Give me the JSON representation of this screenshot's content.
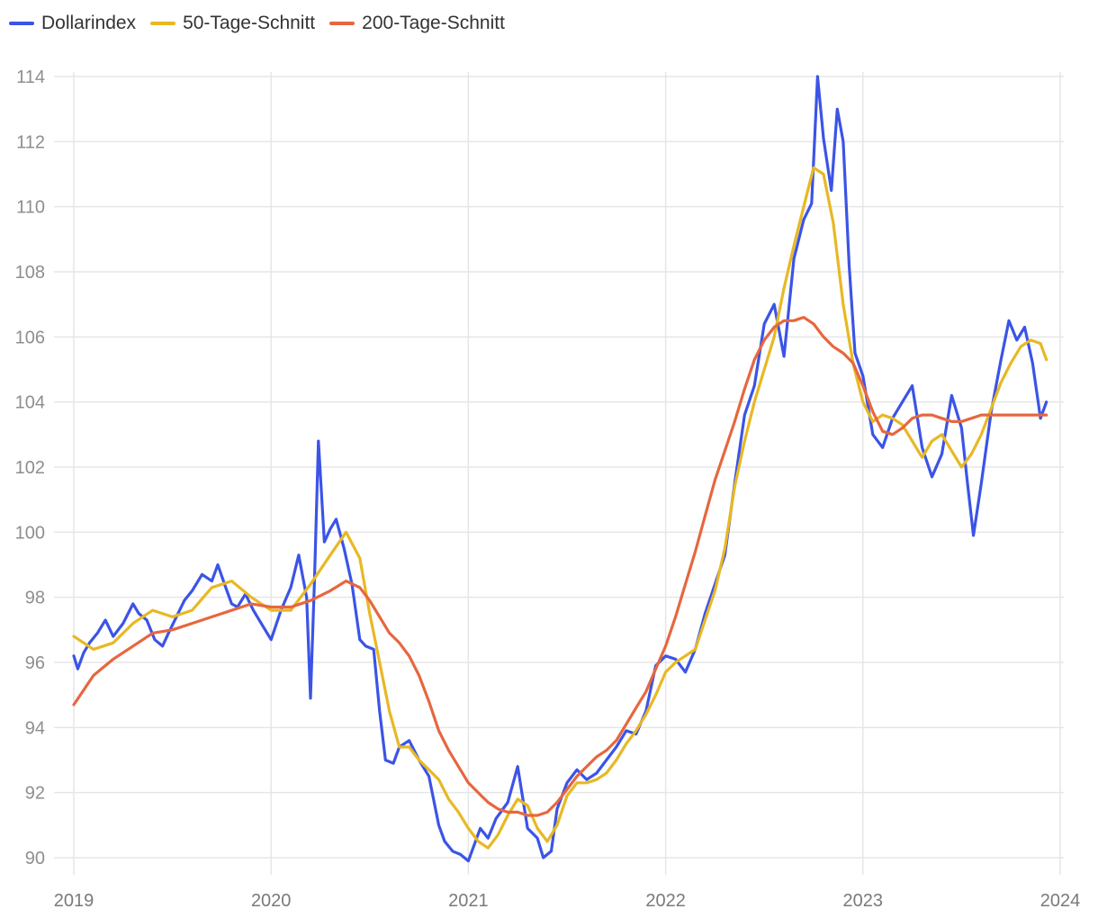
{
  "legend": [
    {
      "label": "Dollarindex",
      "color": "#3b54e6"
    },
    {
      "label": "50-Tage-Schnitt",
      "color": "#e8b824"
    },
    {
      "label": "200-Tage-Schnitt",
      "color": "#e6673f"
    }
  ],
  "chart_data": {
    "type": "line",
    "title": "",
    "xlabel": "",
    "ylabel": "",
    "xlim": [
      2019.0,
      2023.96
    ],
    "ylim": [
      89.8,
      114.2
    ],
    "x_ticks": [
      2019,
      2020,
      2021,
      2022,
      2023,
      2024
    ],
    "x_tick_labels": [
      "2019",
      "2020",
      "2021",
      "2022",
      "2023",
      "2024"
    ],
    "y_ticks": [
      90,
      92,
      94,
      96,
      98,
      100,
      102,
      104,
      106,
      108,
      110,
      112,
      114
    ],
    "y_tick_labels": [
      "90",
      "92",
      "94",
      "96",
      "98",
      "100",
      "102",
      "104",
      "106",
      "108",
      "110",
      "112",
      "114"
    ],
    "grid": true,
    "legend_position": "top-left",
    "series": [
      {
        "name": "Dollarindex",
        "color": "#3b54e6",
        "x": [
          2019.0,
          2019.02,
          2019.05,
          2019.08,
          2019.12,
          2019.16,
          2019.2,
          2019.25,
          2019.3,
          2019.33,
          2019.37,
          2019.41,
          2019.45,
          2019.48,
          2019.52,
          2019.56,
          2019.6,
          2019.65,
          2019.7,
          2019.73,
          2019.77,
          2019.8,
          2019.83,
          2019.87,
          2019.91,
          2019.95,
          2020.0,
          2020.05,
          2020.1,
          2020.14,
          2020.18,
          2020.2,
          2020.22,
          2020.24,
          2020.27,
          2020.3,
          2020.33,
          2020.37,
          2020.41,
          2020.45,
          2020.48,
          2020.52,
          2020.55,
          2020.58,
          2020.62,
          2020.65,
          2020.7,
          2020.75,
          2020.8,
          2020.85,
          2020.88,
          2020.92,
          2020.96,
          2021.0,
          2021.03,
          2021.06,
          2021.1,
          2021.14,
          2021.2,
          2021.25,
          2021.3,
          2021.35,
          2021.38,
          2021.42,
          2021.45,
          2021.5,
          2021.55,
          2021.6,
          2021.65,
          2021.7,
          2021.75,
          2021.8,
          2021.85,
          2021.9,
          2021.95,
          2022.0,
          2022.05,
          2022.1,
          2022.15,
          2022.2,
          2022.25,
          2022.3,
          2022.35,
          2022.4,
          2022.45,
          2022.5,
          2022.55,
          2022.6,
          2022.65,
          2022.7,
          2022.74,
          2022.77,
          2022.8,
          2022.84,
          2022.87,
          2022.9,
          2022.93,
          2022.96,
          2023.0,
          2023.05,
          2023.1,
          2023.15,
          2023.2,
          2023.25,
          2023.3,
          2023.35,
          2023.4,
          2023.45,
          2023.5,
          2023.53,
          2023.56,
          2023.6,
          2023.65,
          2023.7,
          2023.74,
          2023.78,
          2023.82,
          2023.86,
          2023.9,
          2023.93
        ],
        "values": [
          96.2,
          95.8,
          96.3,
          96.6,
          96.9,
          97.3,
          96.8,
          97.2,
          97.8,
          97.5,
          97.3,
          96.7,
          96.5,
          96.9,
          97.4,
          97.9,
          98.2,
          98.7,
          98.5,
          99.0,
          98.3,
          97.8,
          97.7,
          98.1,
          97.6,
          97.2,
          96.7,
          97.6,
          98.3,
          99.3,
          98.0,
          94.9,
          98.5,
          102.8,
          99.7,
          100.1,
          100.4,
          99.5,
          98.4,
          96.7,
          96.5,
          96.4,
          94.5,
          93.0,
          92.9,
          93.4,
          93.6,
          93.0,
          92.5,
          91.0,
          90.5,
          90.2,
          90.1,
          89.9,
          90.4,
          90.9,
          90.6,
          91.2,
          91.7,
          92.8,
          90.9,
          90.6,
          90.0,
          90.2,
          91.5,
          92.3,
          92.7,
          92.4,
          92.6,
          93.0,
          93.4,
          93.9,
          93.8,
          94.5,
          95.9,
          96.2,
          96.1,
          95.7,
          96.4,
          97.5,
          98.4,
          99.3,
          101.5,
          103.6,
          104.5,
          106.4,
          107.0,
          105.4,
          108.4,
          109.6,
          110.1,
          114.0,
          112.1,
          110.5,
          113.0,
          112.0,
          108.2,
          105.5,
          104.8,
          103.0,
          102.6,
          103.5,
          104.0,
          104.5,
          102.6,
          101.7,
          102.4,
          104.2,
          103.2,
          101.5,
          99.9,
          101.5,
          103.7,
          105.3,
          106.5,
          105.9,
          106.3,
          105.2,
          103.5,
          104.0
        ],
        "note_precision": "approximate"
      },
      {
        "name": "50-Tage-Schnitt",
        "color": "#e8b824",
        "x": [
          2019.0,
          2019.1,
          2019.2,
          2019.3,
          2019.4,
          2019.5,
          2019.6,
          2019.7,
          2019.8,
          2019.9,
          2020.0,
          2020.1,
          2020.2,
          2020.3,
          2020.38,
          2020.45,
          2020.5,
          2020.55,
          2020.6,
          2020.65,
          2020.7,
          2020.75,
          2020.8,
          2020.85,
          2020.9,
          2020.95,
          2021.0,
          2021.05,
          2021.1,
          2021.15,
          2021.2,
          2021.25,
          2021.3,
          2021.35,
          2021.4,
          2021.45,
          2021.5,
          2021.55,
          2021.6,
          2021.65,
          2021.7,
          2021.75,
          2021.8,
          2021.85,
          2021.9,
          2021.95,
          2022.0,
          2022.05,
          2022.1,
          2022.15,
          2022.2,
          2022.25,
          2022.3,
          2022.35,
          2022.4,
          2022.45,
          2022.5,
          2022.55,
          2022.6,
          2022.65,
          2022.7,
          2022.75,
          2022.8,
          2022.85,
          2022.9,
          2022.95,
          2023.0,
          2023.05,
          2023.1,
          2023.15,
          2023.2,
          2023.25,
          2023.3,
          2023.35,
          2023.4,
          2023.45,
          2023.5,
          2023.55,
          2023.6,
          2023.65,
          2023.7,
          2023.75,
          2023.8,
          2023.85,
          2023.9,
          2023.93
        ],
        "values": [
          96.8,
          96.4,
          96.6,
          97.2,
          97.6,
          97.4,
          97.6,
          98.3,
          98.5,
          98.0,
          97.6,
          97.6,
          98.4,
          99.3,
          100.0,
          99.2,
          97.5,
          96.0,
          94.5,
          93.4,
          93.4,
          93.0,
          92.7,
          92.4,
          91.8,
          91.4,
          90.9,
          90.5,
          90.3,
          90.7,
          91.3,
          91.8,
          91.6,
          90.9,
          90.5,
          91.0,
          91.9,
          92.3,
          92.3,
          92.4,
          92.6,
          93.0,
          93.5,
          93.9,
          94.4,
          95.0,
          95.7,
          96.0,
          96.2,
          96.4,
          97.3,
          98.2,
          99.5,
          101.4,
          102.8,
          104.0,
          105.0,
          106.0,
          107.5,
          108.8,
          110.0,
          111.2,
          111.0,
          109.5,
          107.0,
          105.2,
          104.0,
          103.4,
          103.6,
          103.5,
          103.3,
          102.8,
          102.3,
          102.8,
          103.0,
          102.5,
          102.0,
          102.4,
          103.0,
          103.8,
          104.6,
          105.2,
          105.7,
          105.9,
          105.8,
          105.3
        ],
        "note_precision": "approximate"
      },
      {
        "name": "200-Tage-Schnitt",
        "color": "#e6673f",
        "x": [
          2019.0,
          2019.1,
          2019.2,
          2019.3,
          2019.4,
          2019.5,
          2019.6,
          2019.7,
          2019.8,
          2019.9,
          2020.0,
          2020.1,
          2020.2,
          2020.3,
          2020.38,
          2020.45,
          2020.5,
          2020.55,
          2020.6,
          2020.65,
          2020.7,
          2020.75,
          2020.8,
          2020.85,
          2020.9,
          2020.95,
          2021.0,
          2021.05,
          2021.1,
          2021.15,
          2021.2,
          2021.25,
          2021.3,
          2021.35,
          2021.4,
          2021.45,
          2021.5,
          2021.55,
          2021.6,
          2021.65,
          2021.7,
          2021.75,
          2021.8,
          2021.85,
          2021.9,
          2021.95,
          2022.0,
          2022.05,
          2022.1,
          2022.15,
          2022.2,
          2022.25,
          2022.3,
          2022.35,
          2022.4,
          2022.45,
          2022.5,
          2022.55,
          2022.6,
          2022.65,
          2022.7,
          2022.75,
          2022.8,
          2022.85,
          2022.9,
          2022.95,
          2023.0,
          2023.05,
          2023.1,
          2023.15,
          2023.2,
          2023.25,
          2023.3,
          2023.35,
          2023.4,
          2023.45,
          2023.5,
          2023.55,
          2023.6,
          2023.65,
          2023.7,
          2023.75,
          2023.8,
          2023.85,
          2023.9,
          2023.93
        ],
        "values": [
          94.7,
          95.6,
          96.1,
          96.5,
          96.9,
          97.0,
          97.2,
          97.4,
          97.6,
          97.8,
          97.7,
          97.7,
          97.9,
          98.2,
          98.5,
          98.3,
          97.9,
          97.4,
          96.9,
          96.6,
          96.2,
          95.6,
          94.8,
          93.9,
          93.3,
          92.8,
          92.3,
          92.0,
          91.7,
          91.5,
          91.4,
          91.4,
          91.3,
          91.3,
          91.4,
          91.7,
          92.1,
          92.5,
          92.8,
          93.1,
          93.3,
          93.6,
          94.1,
          94.6,
          95.1,
          95.8,
          96.5,
          97.4,
          98.4,
          99.4,
          100.5,
          101.6,
          102.5,
          103.4,
          104.4,
          105.3,
          105.9,
          106.3,
          106.5,
          106.5,
          106.6,
          106.4,
          106.0,
          105.7,
          105.5,
          105.2,
          104.5,
          103.7,
          103.1,
          103.0,
          103.2,
          103.5,
          103.6,
          103.6,
          103.5,
          103.4,
          103.4,
          103.5,
          103.6,
          103.6,
          103.6,
          103.6,
          103.6,
          103.6,
          103.6,
          103.6
        ],
        "note_precision": "approximate"
      }
    ]
  }
}
